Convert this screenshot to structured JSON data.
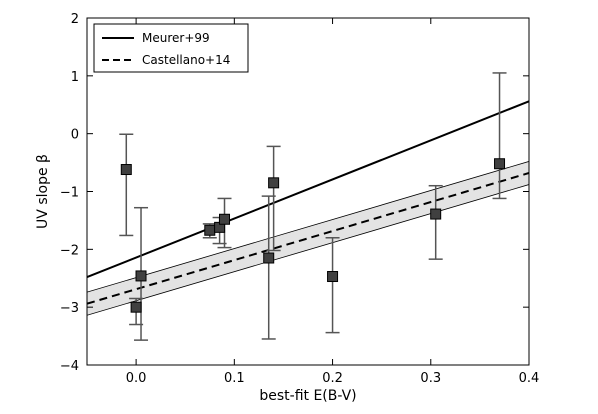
{
  "chart_data": {
    "type": "scatter",
    "xlabel": "best-fit E(B-V)",
    "ylabel": "UV slope β",
    "xlim": [
      -0.05,
      0.4
    ],
    "ylim": [
      -4,
      2
    ],
    "xticks": [
      0.0,
      0.1,
      0.2,
      0.3,
      0.4
    ],
    "xtick_labels": [
      "0.0",
      "0.1",
      "0.2",
      "0.3",
      "0.4"
    ],
    "yticks": [
      -4,
      -3,
      -2,
      -1,
      0,
      1,
      2
    ],
    "ytick_labels": [
      "−4",
      "−3",
      "−2",
      "−1",
      "0",
      "1",
      "2"
    ],
    "grid": false,
    "legend_position": "top-left",
    "series": [
      {
        "name": "Meurer+99",
        "kind": "line",
        "style": "solid",
        "color": "#000000",
        "points": [
          [
            -0.05,
            -2.48
          ],
          [
            0.4,
            0.56
          ]
        ]
      },
      {
        "name": "Castellano+14",
        "kind": "line",
        "style": "dashed",
        "color": "#000000",
        "points": [
          [
            -0.05,
            -2.94
          ],
          [
            0.4,
            -0.68
          ]
        ],
        "band_lower": [
          [
            -0.05,
            -3.14
          ],
          [
            0.4,
            -0.88
          ]
        ],
        "band_upper": [
          [
            -0.05,
            -2.74
          ],
          [
            0.4,
            -0.48
          ]
        ],
        "band_color": "#e3e3e3"
      },
      {
        "kind": "points",
        "marker": "square",
        "color": "#404040",
        "errorbar_color": "#555555",
        "points": [
          {
            "x": -0.01,
            "y": -0.62,
            "ylo": -1.76,
            "yhi": -0.01
          },
          {
            "x": 0.0,
            "y": -3.0,
            "ylo": -3.3,
            "yhi": -2.85
          },
          {
            "x": 0.005,
            "y": -2.46,
            "ylo": -3.57,
            "yhi": -1.28
          },
          {
            "x": 0.075,
            "y": -1.67,
            "ylo": -1.8,
            "yhi": -1.56
          },
          {
            "x": 0.085,
            "y": -1.62,
            "ylo": -1.9,
            "yhi": -1.45
          },
          {
            "x": 0.09,
            "y": -1.48,
            "ylo": -1.97,
            "yhi": -1.12
          },
          {
            "x": 0.135,
            "y": -2.15,
            "ylo": -3.55,
            "yhi": -1.08
          },
          {
            "x": 0.14,
            "y": -0.85,
            "ylo": -2.02,
            "yhi": -0.22
          },
          {
            "x": 0.2,
            "y": -2.47,
            "ylo": -3.44,
            "yhi": -1.8
          },
          {
            "x": 0.305,
            "y": -1.39,
            "ylo": -2.17,
            "yhi": -0.9
          },
          {
            "x": 0.37,
            "y": -0.52,
            "ylo": -1.12,
            "yhi": 1.05
          }
        ]
      }
    ]
  }
}
